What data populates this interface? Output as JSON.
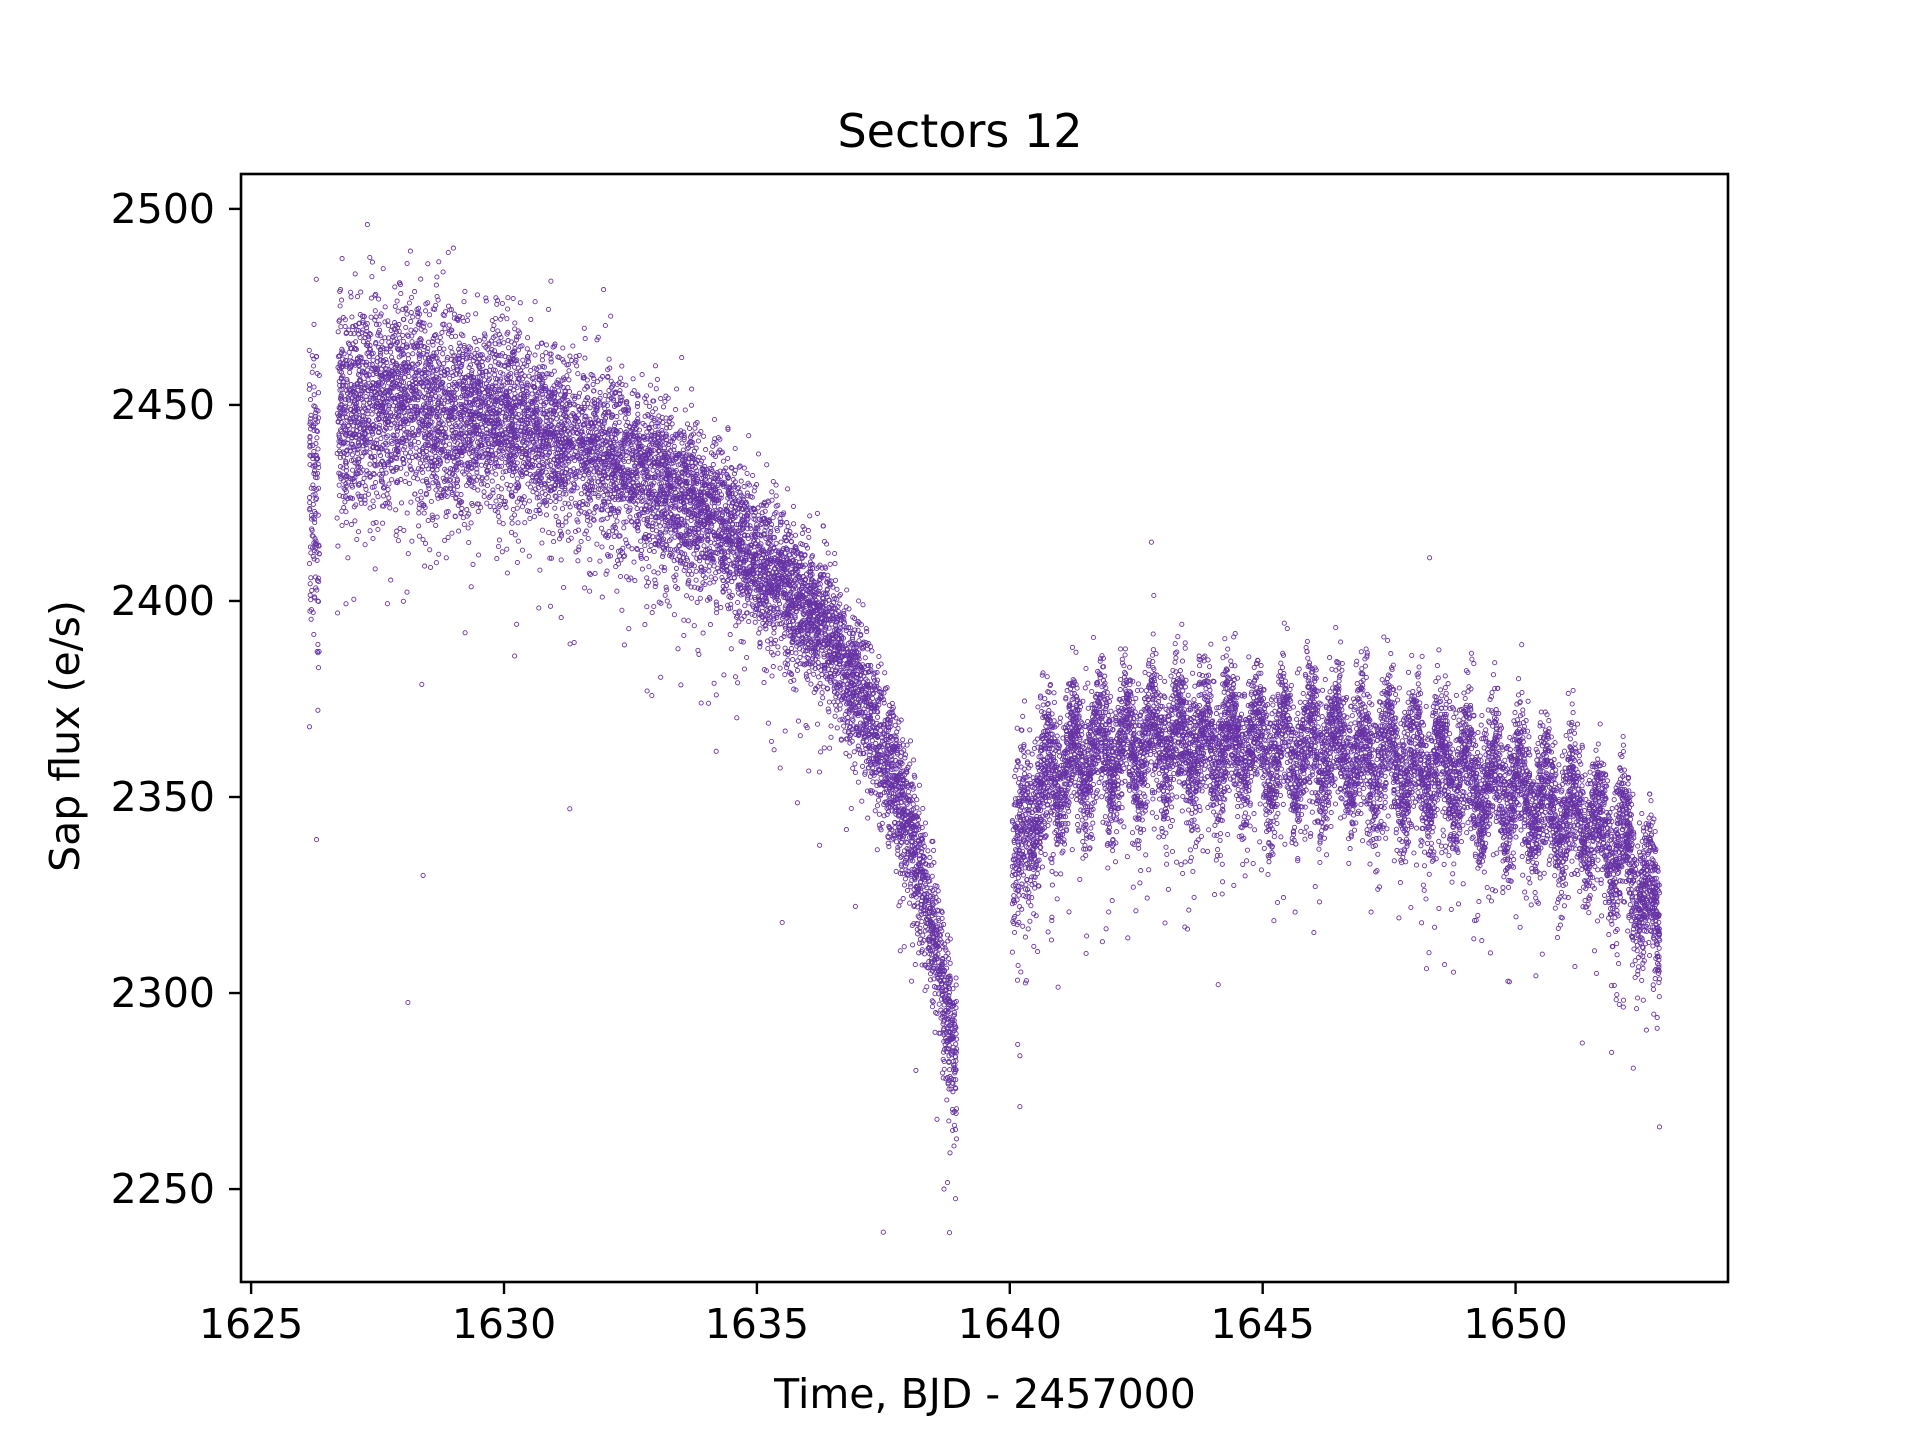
{
  "figure": {
    "title": "Sectors 12",
    "xlabel": "Time, BJD - 2457000",
    "ylabel": "Sap flux (e/s)",
    "marker_color": "#6633a4",
    "xticks": [
      1625,
      1630,
      1635,
      1640,
      1645,
      1650
    ],
    "yticks": [
      2250,
      2300,
      2350,
      2400,
      2450,
      2500
    ],
    "xtick_labels": [
      "1625",
      "1630",
      "1635",
      "1640",
      "1645",
      "1650"
    ],
    "ytick_labels": [
      "2250",
      "2300",
      "2350",
      "2400",
      "2450",
      "2500"
    ]
  },
  "chart_data": {
    "type": "scatter",
    "title": "Sectors 12",
    "xlabel": "Time, BJD - 2457000",
    "ylabel": "Sap flux (e/s)",
    "xlim": [
      1624.8,
      1654.2
    ],
    "ylim": [
      2226.3,
      2508.9
    ],
    "grid": false,
    "legend": null,
    "marker": "hollow circle, small",
    "series": [
      {
        "name": "SAP flux",
        "color": "#6633a4",
        "segments": [
          {
            "t_start": 1626.15,
            "t_end": 1626.35,
            "binned": [
              {
                "t": 1626.2,
                "flux": 2430,
                "spread": 30
              }
            ]
          },
          {
            "t_start": 1626.7,
            "t_end": 1638.95,
            "binned": [
              {
                "t": 1627.0,
                "flux": 2448,
                "spread": 18
              },
              {
                "t": 1627.5,
                "flux": 2450,
                "spread": 18
              },
              {
                "t": 1628.0,
                "flux": 2452,
                "spread": 18
              },
              {
                "t": 1628.5,
                "flux": 2449,
                "spread": 18
              },
              {
                "t": 1629.0,
                "flux": 2448,
                "spread": 17
              },
              {
                "t": 1629.5,
                "flux": 2448,
                "spread": 16
              },
              {
                "t": 1630.0,
                "flux": 2446,
                "spread": 16
              },
              {
                "t": 1630.5,
                "flux": 2444,
                "spread": 15
              },
              {
                "t": 1631.0,
                "flux": 2442,
                "spread": 15
              },
              {
                "t": 1631.5,
                "flux": 2440,
                "spread": 15
              },
              {
                "t": 1632.0,
                "flux": 2437,
                "spread": 15
              },
              {
                "t": 1632.5,
                "flux": 2434,
                "spread": 14
              },
              {
                "t": 1633.0,
                "flux": 2431,
                "spread": 14
              },
              {
                "t": 1633.5,
                "flux": 2427,
                "spread": 14
              },
              {
                "t": 1634.0,
                "flux": 2423,
                "spread": 13
              },
              {
                "t": 1634.5,
                "flux": 2417,
                "spread": 13
              },
              {
                "t": 1635.0,
                "flux": 2410,
                "spread": 12
              },
              {
                "t": 1635.5,
                "flux": 2404,
                "spread": 12
              },
              {
                "t": 1636.0,
                "flux": 2398,
                "spread": 12
              },
              {
                "t": 1636.5,
                "flux": 2389,
                "spread": 12
              },
              {
                "t": 1637.0,
                "flux": 2378,
                "spread": 12
              },
              {
                "t": 1637.5,
                "flux": 2362,
                "spread": 12
              },
              {
                "t": 1638.0,
                "flux": 2343,
                "spread": 12
              },
              {
                "t": 1638.5,
                "flux": 2315,
                "spread": 12
              },
              {
                "t": 1638.9,
                "flux": 2285,
                "spread": 12
              }
            ]
          },
          {
            "t_start": 1640.05,
            "t_end": 1652.85,
            "binned": [
              {
                "t": 1640.1,
                "flux": 2330,
                "spread": 16
              },
              {
                "t": 1640.5,
                "flux": 2350,
                "spread": 13
              },
              {
                "t": 1641.0,
                "flux": 2358,
                "spread": 12
              },
              {
                "t": 1641.5,
                "flux": 2361,
                "spread": 12
              },
              {
                "t": 1642.0,
                "flux": 2362,
                "spread": 12
              },
              {
                "t": 1642.5,
                "flux": 2364,
                "spread": 12
              },
              {
                "t": 1643.0,
                "flux": 2364,
                "spread": 12
              },
              {
                "t": 1643.5,
                "flux": 2363,
                "spread": 12
              },
              {
                "t": 1644.0,
                "flux": 2363,
                "spread": 12
              },
              {
                "t": 1644.5,
                "flux": 2363,
                "spread": 12
              },
              {
                "t": 1645.0,
                "flux": 2362,
                "spread": 12
              },
              {
                "t": 1645.5,
                "flux": 2362,
                "spread": 12
              },
              {
                "t": 1646.0,
                "flux": 2362,
                "spread": 12
              },
              {
                "t": 1646.5,
                "flux": 2361,
                "spread": 12
              },
              {
                "t": 1647.0,
                "flux": 2360,
                "spread": 12
              },
              {
                "t": 1647.5,
                "flux": 2359,
                "spread": 12
              },
              {
                "t": 1648.0,
                "flux": 2358,
                "spread": 12
              },
              {
                "t": 1648.5,
                "flux": 2357,
                "spread": 12
              },
              {
                "t": 1649.0,
                "flux": 2355,
                "spread": 12
              },
              {
                "t": 1649.5,
                "flux": 2353,
                "spread": 12
              },
              {
                "t": 1650.0,
                "flux": 2351,
                "spread": 12
              },
              {
                "t": 1650.5,
                "flux": 2349,
                "spread": 12
              },
              {
                "t": 1651.0,
                "flux": 2347,
                "spread": 12
              },
              {
                "t": 1651.5,
                "flux": 2343,
                "spread": 12
              },
              {
                "t": 1652.0,
                "flux": 2337,
                "spread": 12
              },
              {
                "t": 1652.5,
                "flux": 2327,
                "spread": 12
              },
              {
                "t": 1652.85,
                "flux": 2318,
                "spread": 12
              }
            ]
          }
        ],
        "notable_points": [
          {
            "t": 1627.3,
            "flux": 2496
          },
          {
            "t": 1629.0,
            "flux": 2490
          },
          {
            "t": 1628.1,
            "flux": 2297.6
          },
          {
            "t": 1628.4,
            "flux": 2330
          },
          {
            "t": 1631.3,
            "flux": 2347
          },
          {
            "t": 1635.5,
            "flux": 2318
          },
          {
            "t": 1637.5,
            "flux": 2239
          },
          {
            "t": 1638.7,
            "flux": 2250
          },
          {
            "t": 1640.2,
            "flux": 2271
          },
          {
            "t": 1640.2,
            "flux": 2284
          },
          {
            "t": 1642.8,
            "flux": 2415
          },
          {
            "t": 1648.3,
            "flux": 2411
          },
          {
            "t": 1651.6,
            "flux": 2305
          },
          {
            "t": 1652.8,
            "flux": 2291
          }
        ]
      }
    ]
  }
}
